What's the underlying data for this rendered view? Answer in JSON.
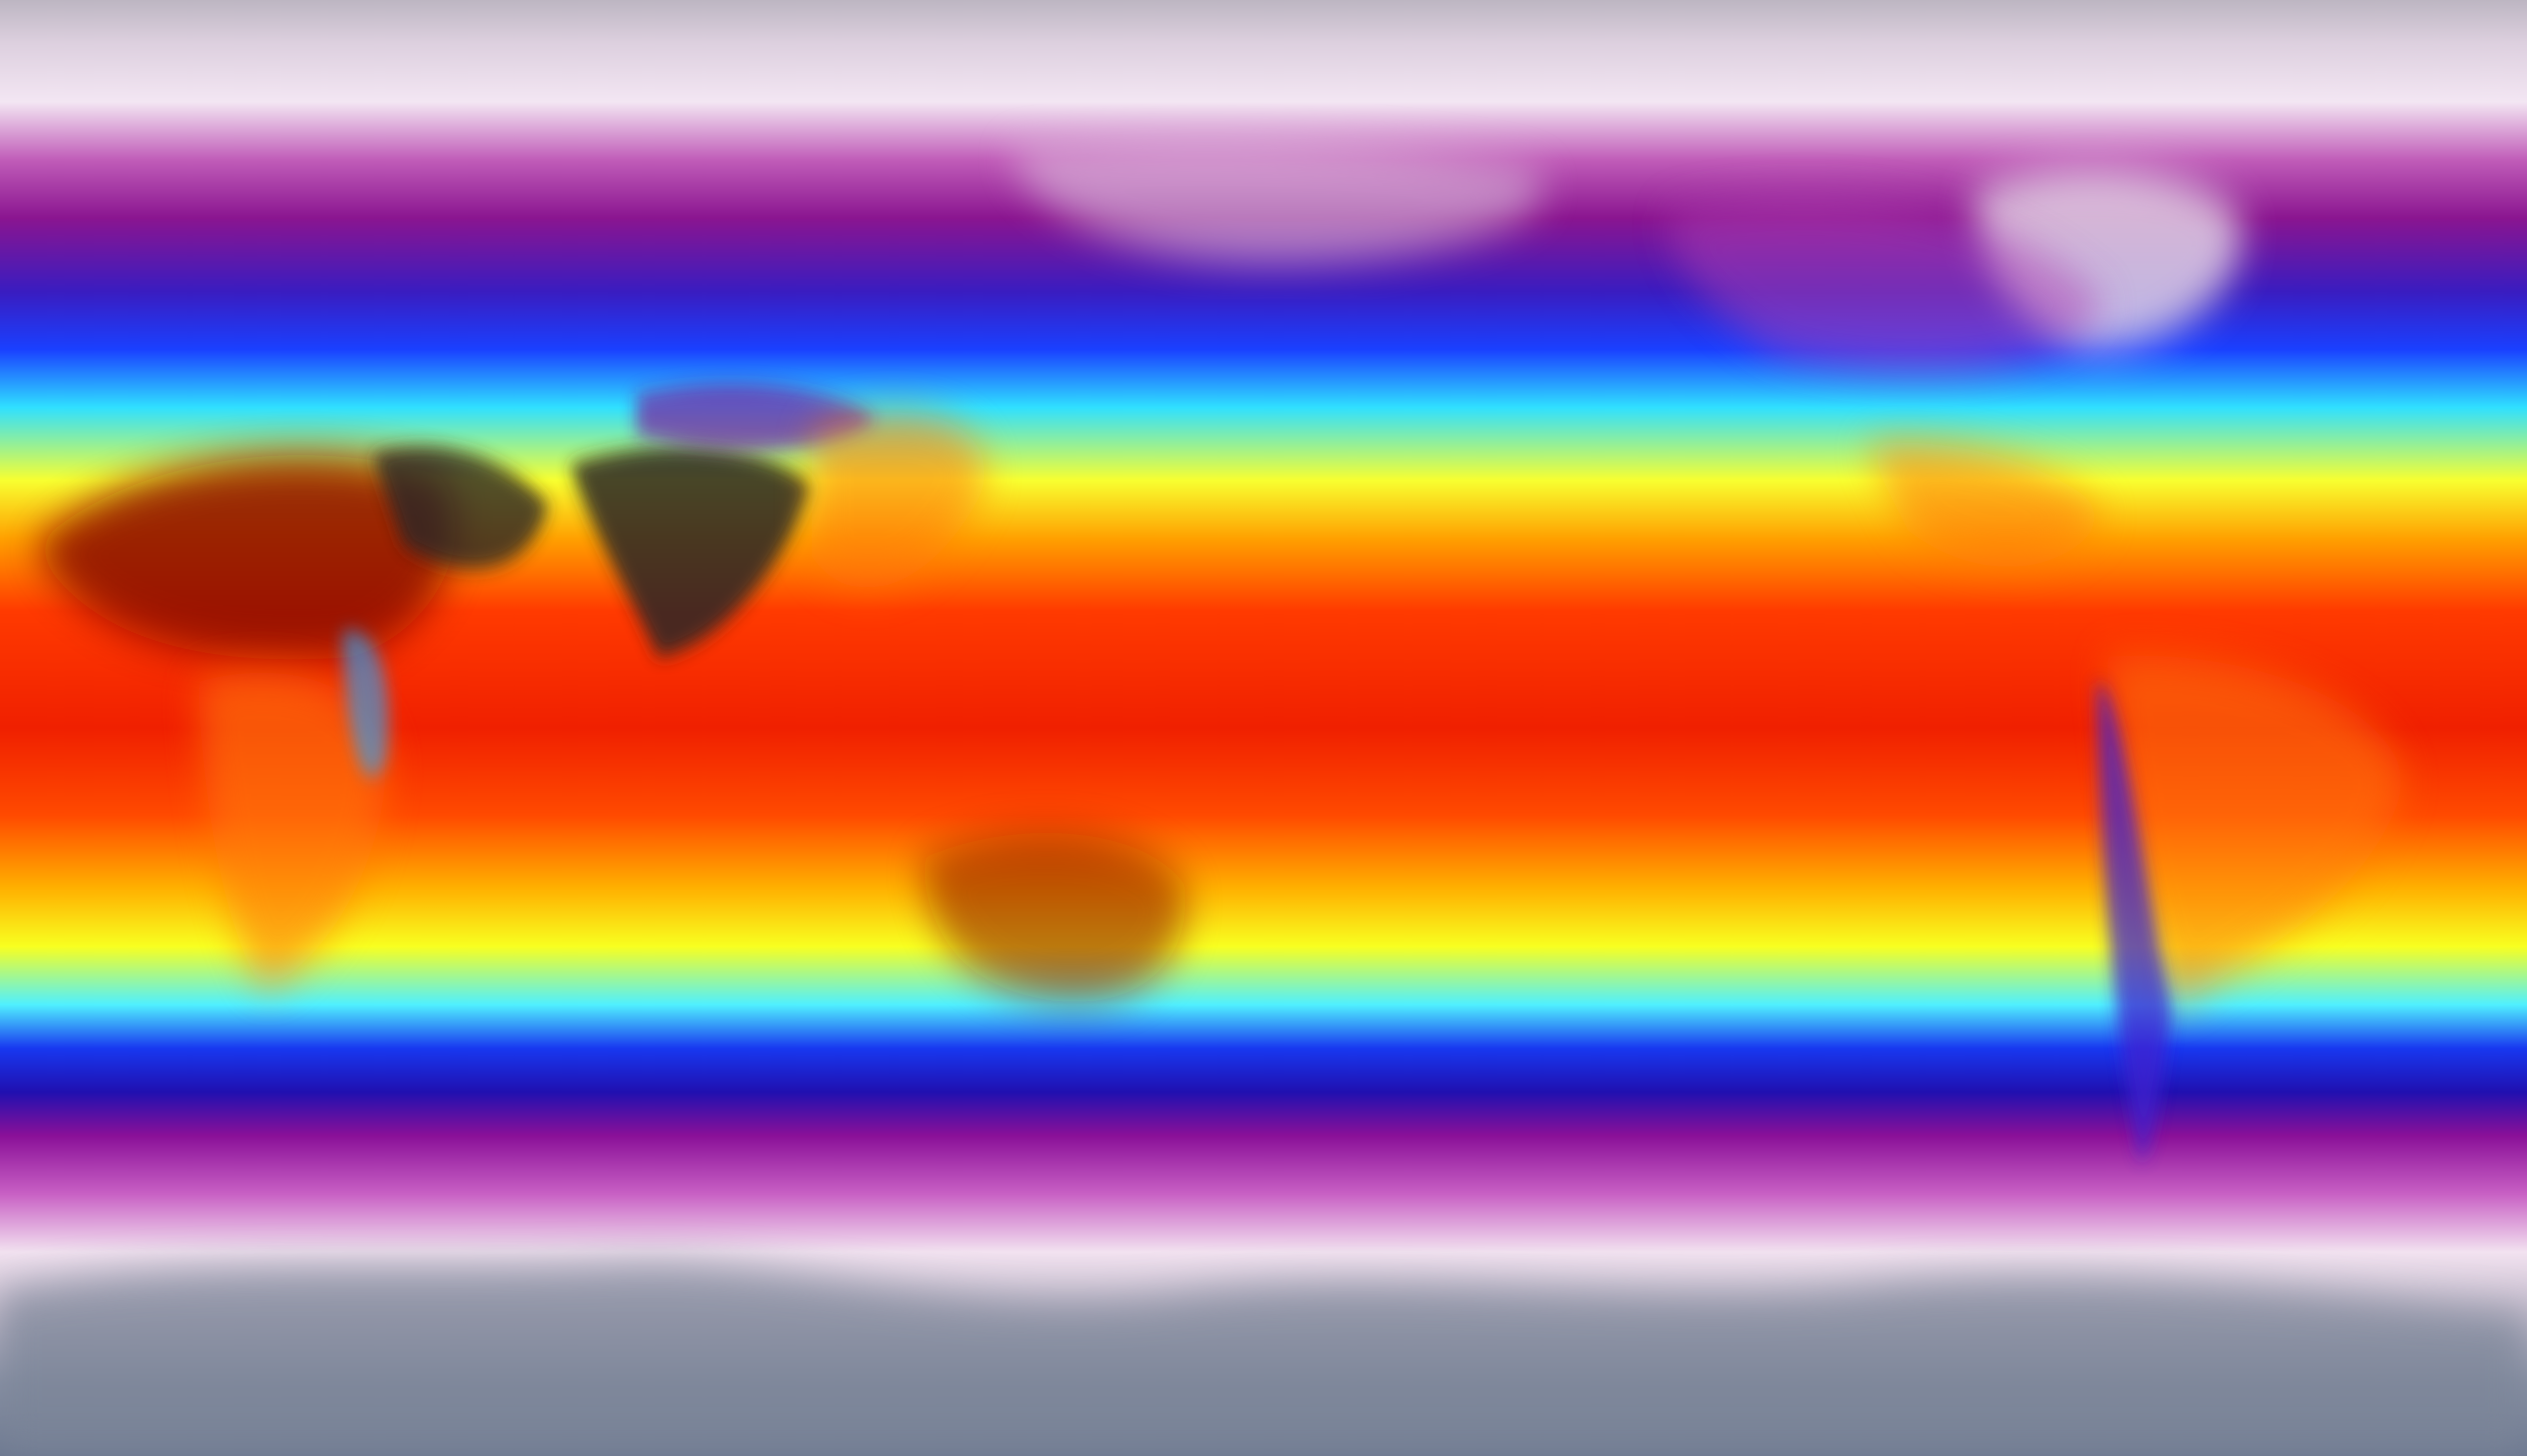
{
  "map": {
    "projection": "equirectangular",
    "colormap": {
      "stops": [
        {
          "offset": 0.0,
          "color": "#bdb6c2"
        },
        {
          "offset": 0.03,
          "color": "#ddd0df"
        },
        {
          "offset": 0.07,
          "color": "#f3e6f3"
        },
        {
          "offset": 0.11,
          "color": "#c05cb8"
        },
        {
          "offset": 0.15,
          "color": "#8a1590"
        },
        {
          "offset": 0.2,
          "color": "#3a1cc0"
        },
        {
          "offset": 0.24,
          "color": "#1a40ff"
        },
        {
          "offset": 0.28,
          "color": "#30e0ff"
        },
        {
          "offset": 0.33,
          "color": "#f8ff30"
        },
        {
          "offset": 0.37,
          "color": "#ffa000"
        },
        {
          "offset": 0.42,
          "color": "#ff3a00"
        },
        {
          "offset": 0.5,
          "color": "#f02000"
        },
        {
          "offset": 0.56,
          "color": "#ff4a00"
        },
        {
          "offset": 0.61,
          "color": "#ffb000"
        },
        {
          "offset": 0.65,
          "color": "#f8ff20"
        },
        {
          "offset": 0.69,
          "color": "#50f0ff"
        },
        {
          "offset": 0.72,
          "color": "#1838f0"
        },
        {
          "offset": 0.75,
          "color": "#2010b0"
        },
        {
          "offset": 0.78,
          "color": "#8a1098"
        },
        {
          "offset": 0.82,
          "color": "#c860c4"
        },
        {
          "offset": 0.86,
          "color": "#f2e2f0"
        },
        {
          "offset": 0.9,
          "color": "#c4bccc"
        },
        {
          "offset": 0.95,
          "color": "#8890a4"
        },
        {
          "offset": 1.0,
          "color": "#6c7890"
        }
      ]
    },
    "land_colors": {
      "hot_desert": "#8a0c06",
      "hottest": "#2c2626",
      "warm_land": "#ff7a10",
      "cool_land": "#20a8ff",
      "ice": "#e8dde8",
      "antarctic": "#7c8598"
    }
  }
}
